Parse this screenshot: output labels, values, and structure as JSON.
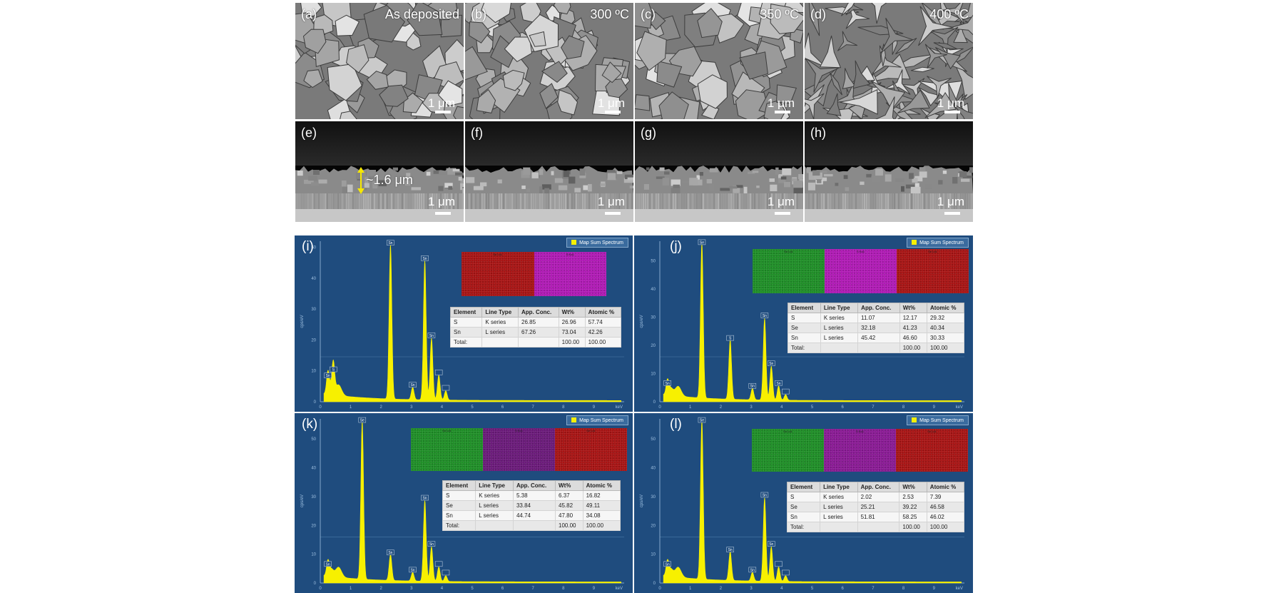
{
  "sem_top": [
    {
      "label": "(a)",
      "condition": "As deposited",
      "scale": "1 μm"
    },
    {
      "label": "(b)",
      "condition": "300 ºC",
      "scale": "1 μm"
    },
    {
      "label": "(c)",
      "condition": "350 ºC",
      "scale": "1 μm"
    },
    {
      "label": "(d)",
      "condition": "400 ºC",
      "scale": "1 μm"
    }
  ],
  "sem_cross": [
    {
      "label": "(e)",
      "scale": "1 μm",
      "thickness": "~1.6 μm"
    },
    {
      "label": "(f)",
      "scale": "1 μm"
    },
    {
      "label": "(g)",
      "scale": "1 μm"
    },
    {
      "label": "(h)",
      "scale": "1 μm"
    }
  ],
  "colors": {
    "spectrum": "#f7f000",
    "eds_bg": "#1f4c7e",
    "map_sn": "#a81414",
    "map_s": "#b01ab5",
    "map_se": "#1f8f27"
  },
  "eds": [
    {
      "label": "(i)",
      "legend": "Map Sum Spectrum",
      "ylabel": "cps/eV",
      "xlabel": "keV",
      "yticks": [
        "0",
        "10",
        "20",
        "30",
        "40",
        "50"
      ],
      "xticks": [
        "0",
        "1",
        "2",
        "3",
        "4",
        "5",
        "6",
        "7",
        "8",
        "9"
      ],
      "maps": [
        {
          "title": "Sn Lα1",
          "color": "#a81414"
        },
        {
          "title": "S Kα1",
          "color": "#b01ab5"
        }
      ],
      "peaks": [
        "Sn",
        "S",
        "Sn",
        "Sn",
        "Sn",
        "Sn"
      ],
      "chart_data": {
        "type": "area",
        "x": [
          0.25,
          0.43,
          2.31,
          3.04,
          3.44,
          3.66,
          3.9,
          4.13
        ],
        "values": [
          7,
          9,
          50,
          4,
          45,
          20,
          8,
          3
        ],
        "xlim": [
          0,
          10
        ],
        "ylim": [
          0,
          52
        ]
      },
      "table": {
        "headers": [
          "Element",
          "Line Type",
          "App. Conc.",
          "Wt%",
          "Atomic %"
        ],
        "rows": [
          [
            "S",
            "K series",
            "26.85",
            "26.96",
            "57.74"
          ],
          [
            "Sn",
            "L series",
            "67.26",
            "73.04",
            "42.26"
          ],
          [
            "Total:",
            "",
            "",
            "100.00",
            "100.00"
          ]
        ]
      }
    },
    {
      "label": "(j)",
      "legend": "Map Sum Spectrum",
      "ylabel": "cps/eV",
      "xlabel": "keV",
      "yticks": [
        "0",
        "10",
        "20",
        "30",
        "40",
        "50"
      ],
      "xticks": [
        "0",
        "1",
        "2",
        "3",
        "4",
        "5",
        "6",
        "7",
        "8",
        "9"
      ],
      "maps": [
        {
          "title": "Sn Lα1",
          "color": "#1f8f27"
        },
        {
          "title": "S Kα1",
          "color": "#b01ab5"
        },
        {
          "title": "Se Lα1",
          "color": "#a81414"
        }
      ],
      "peaks": [
        "Sn",
        "Se",
        "S",
        "Sn",
        "Sn",
        "Sn",
        "Sn"
      ],
      "chart_data": {
        "type": "area",
        "x": [
          0.25,
          1.38,
          2.31,
          3.04,
          3.44,
          3.66,
          3.9,
          4.13
        ],
        "values": [
          5,
          55,
          21,
          4,
          29,
          12,
          5,
          2
        ],
        "xlim": [
          0,
          10
        ],
        "ylim": [
          0,
          57
        ]
      },
      "table": {
        "headers": [
          "Element",
          "Line Type",
          "App. Conc.",
          "Wt%",
          "Atomic %"
        ],
        "rows": [
          [
            "S",
            "K series",
            "11.07",
            "12.17",
            "29.32"
          ],
          [
            "Se",
            "L series",
            "32.18",
            "41.23",
            "40.34"
          ],
          [
            "Sn",
            "L series",
            "45.42",
            "46.60",
            "30.33"
          ],
          [
            "Total:",
            "",
            "",
            "100.00",
            "100.00"
          ]
        ]
      }
    },
    {
      "label": "(k)",
      "legend": "Map Sum Spectrum",
      "ylabel": "cps/eV",
      "xlabel": "keV",
      "yticks": [
        "0",
        "10",
        "20",
        "30",
        "40",
        "50"
      ],
      "xticks": [
        "0",
        "1",
        "2",
        "3",
        "4",
        "5",
        "6",
        "7",
        "8",
        "9"
      ],
      "maps": [
        {
          "title": "Sn Lα1",
          "color": "#1f8f27"
        },
        {
          "title": "S Kα1",
          "color": "#6b1a7a"
        },
        {
          "title": "Se Lα1",
          "color": "#a81414"
        }
      ],
      "peaks": [
        "Sn",
        "Se",
        "Sn",
        "Sn",
        "Sn",
        "Sn"
      ],
      "chart_data": {
        "type": "area",
        "x": [
          0.25,
          1.38,
          2.31,
          3.04,
          3.44,
          3.66,
          3.9,
          4.13
        ],
        "values": [
          5,
          55,
          9,
          3,
          28,
          12,
          5,
          2
        ],
        "xlim": [
          0,
          10
        ],
        "ylim": [
          0,
          57
        ]
      },
      "table": {
        "headers": [
          "Element",
          "Line Type",
          "App. Conc.",
          "Wt%",
          "Atomic %"
        ],
        "rows": [
          [
            "S",
            "K series",
            "5.38",
            "6.37",
            "16.82"
          ],
          [
            "Se",
            "L series",
            "33.84",
            "45.82",
            "49.11"
          ],
          [
            "Sn",
            "L series",
            "44.74",
            "47.80",
            "34.08"
          ],
          [
            "Total:",
            "",
            "",
            "100.00",
            "100.00"
          ]
        ]
      }
    },
    {
      "label": "(l)",
      "legend": "Map Sum Spectrum",
      "ylabel": "cps/eV",
      "xlabel": "keV",
      "yticks": [
        "0",
        "10",
        "20",
        "30",
        "40",
        "50"
      ],
      "xticks": [
        "0",
        "1",
        "2",
        "3",
        "4",
        "5",
        "6",
        "7",
        "8",
        "9"
      ],
      "maps": [
        {
          "title": "Sn Lα1",
          "color": "#1f8f27"
        },
        {
          "title": "S Kα1",
          "color": "#8a1a95"
        },
        {
          "title": "Se Lα1",
          "color": "#a81414"
        }
      ],
      "peaks": [
        "Sn",
        "Se",
        "Sn",
        "Sn",
        "Sn",
        "Sn"
      ],
      "chart_data": {
        "type": "area",
        "x": [
          0.25,
          1.38,
          2.31,
          3.04,
          3.44,
          3.66,
          3.9,
          4.13
        ],
        "values": [
          5,
          55,
          10,
          3,
          29,
          12,
          5,
          2
        ],
        "xlim": [
          0,
          10
        ],
        "ylim": [
          0,
          57
        ]
      },
      "table": {
        "headers": [
          "Element",
          "Line Type",
          "App. Conc.",
          "Wt%",
          "Atomic %"
        ],
        "rows": [
          [
            "S",
            "K series",
            "2.02",
            "2.53",
            "7.39"
          ],
          [
            "Se",
            "L series",
            "25.21",
            "39.22",
            "46.58"
          ],
          [
            "Sn",
            "L series",
            "51.81",
            "58.25",
            "46.02"
          ],
          [
            "Total:",
            "",
            "",
            "100.00",
            "100.00"
          ]
        ]
      }
    }
  ]
}
